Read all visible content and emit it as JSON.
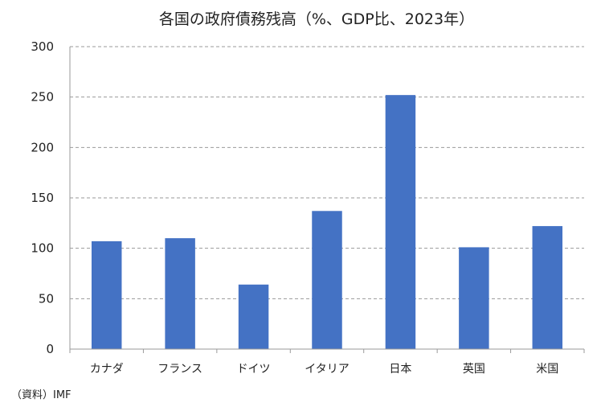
{
  "chart_data": {
    "type": "bar",
    "title": "各国の政府債務残高（%、GDP比、2023年）",
    "categories": [
      "カナダ",
      "フランス",
      "ドイツ",
      "イタリア",
      "日本",
      "英国",
      "米国"
    ],
    "values": [
      107,
      110,
      64,
      137,
      252,
      101,
      122
    ],
    "ylim": [
      0,
      300
    ],
    "yticks": [
      0,
      50,
      100,
      150,
      200,
      250,
      300
    ],
    "grid": true,
    "legend": "none",
    "colors": {
      "bar": "#4472C4"
    }
  },
  "source": "（資料）IMF"
}
